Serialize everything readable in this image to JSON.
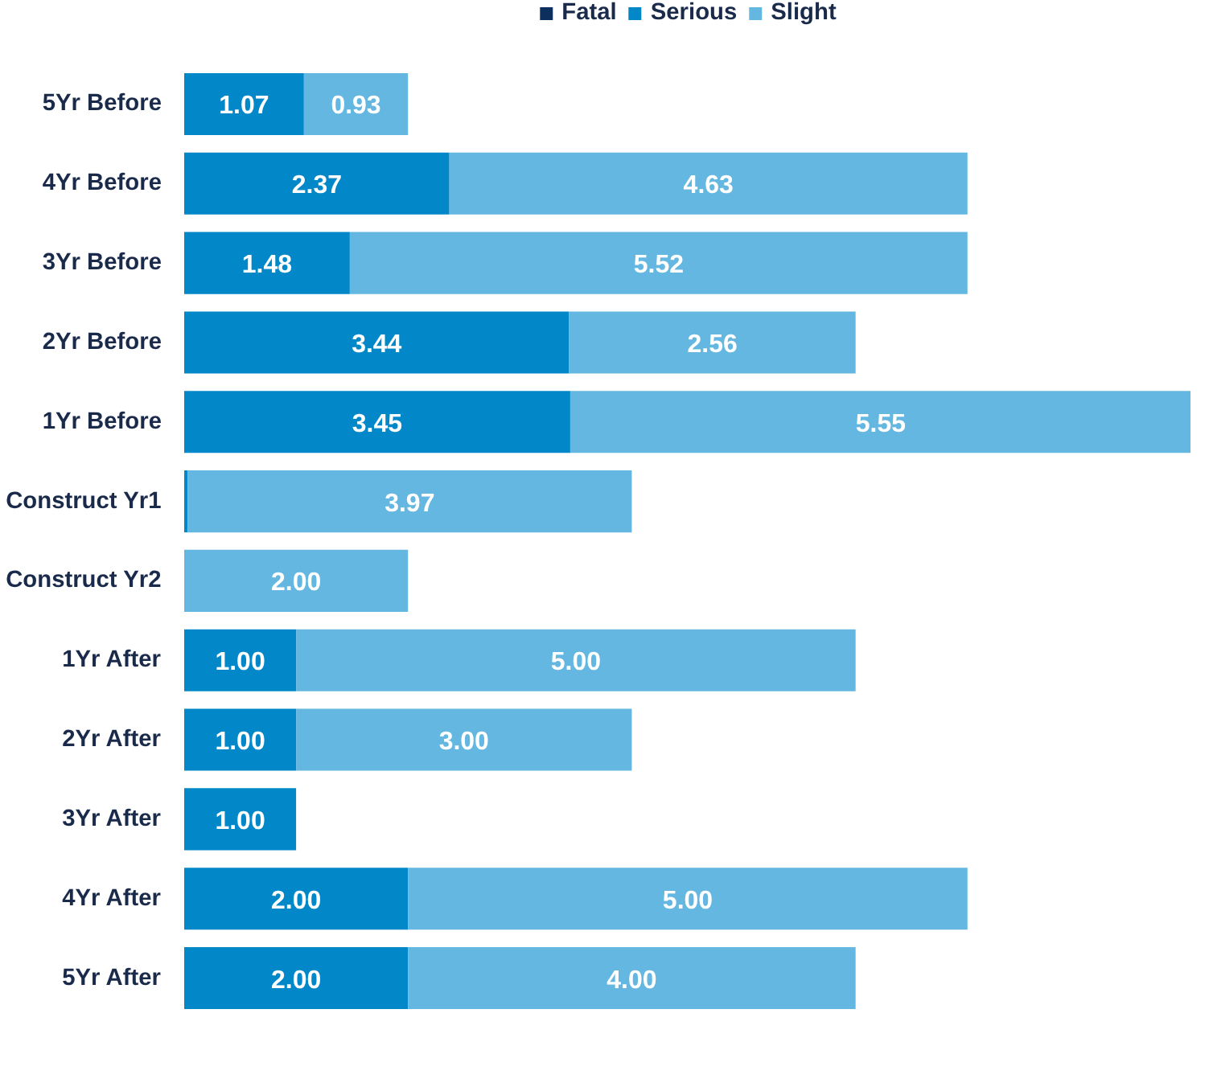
{
  "chart_data": {
    "type": "bar",
    "orientation": "horizontal",
    "stacked": true,
    "legend": "top",
    "categories": [
      "5Yr Before",
      "4Yr Before",
      "3Yr Before",
      "2Yr Before",
      "1Yr Before",
      "Construct Yr1",
      "Construct Yr2",
      "1Yr After",
      "2Yr After",
      "3Yr After",
      "4Yr After",
      "5Yr After"
    ],
    "series": [
      {
        "name": "Fatal",
        "color": "#0d2f5e",
        "values": [
          null,
          null,
          null,
          null,
          null,
          null,
          null,
          null,
          null,
          null,
          null,
          null
        ],
        "value_labels": [
          null,
          null,
          null,
          null,
          null,
          null,
          null,
          null,
          null,
          null,
          null,
          null
        ]
      },
      {
        "name": "Serious",
        "color": "#0288c8",
        "values": [
          1.07,
          2.37,
          1.48,
          3.44,
          3.45,
          0.03,
          null,
          1.0,
          1.0,
          1.0,
          2.0,
          2.0
        ],
        "value_labels": [
          "1.07",
          "2.37",
          "1.48",
          "3.44",
          "3.45",
          null,
          null,
          "1.00",
          "1.00",
          "1.00",
          "2.00",
          "2.00"
        ]
      },
      {
        "name": "Slight",
        "color": "#63b7e0",
        "values": [
          0.93,
          4.63,
          5.52,
          2.56,
          5.55,
          3.97,
          2.0,
          5.0,
          3.0,
          null,
          5.0,
          4.0
        ],
        "value_labels": [
          "0.93",
          "4.63",
          "5.52",
          "2.56",
          "5.55",
          "3.97",
          "2.00",
          "5.00",
          "3.00",
          null,
          "5.00",
          "4.00"
        ]
      }
    ]
  }
}
